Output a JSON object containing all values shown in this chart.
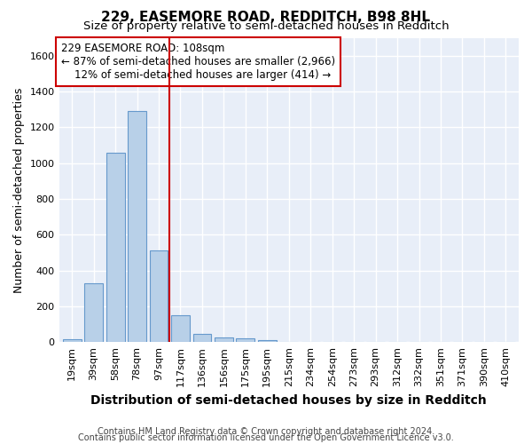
{
  "title": "229, EASEMORE ROAD, REDDITCH, B98 8HL",
  "subtitle": "Size of property relative to semi-detached houses in Redditch",
  "xlabel": "Distribution of semi-detached houses by size in Redditch",
  "ylabel": "Number of semi-detached properties",
  "footer1": "Contains HM Land Registry data © Crown copyright and database right 2024.",
  "footer2": "Contains public sector information licensed under the Open Government Licence v3.0.",
  "bar_labels": [
    "19sqm",
    "39sqm",
    "58sqm",
    "78sqm",
    "97sqm",
    "117sqm",
    "136sqm",
    "156sqm",
    "175sqm",
    "195sqm",
    "215sqm",
    "234sqm",
    "254sqm",
    "273sqm",
    "293sqm",
    "312sqm",
    "332sqm",
    "351sqm",
    "371sqm",
    "390sqm",
    "410sqm"
  ],
  "bar_values": [
    15,
    330,
    1060,
    1290,
    510,
    150,
    45,
    25,
    20,
    10,
    3,
    2,
    1,
    1,
    0,
    0,
    0,
    0,
    0,
    0,
    0
  ],
  "bar_color": "#b8d0e8",
  "bar_edge_color": "#6699cc",
  "vline_x": 5.0,
  "vline_color": "#cc0000",
  "annotation_line1": "229 EASEMORE ROAD: 108sqm",
  "annotation_line2": "← 87% of semi-detached houses are smaller (2,966)",
  "annotation_line3": "    12% of semi-detached houses are larger (414) →",
  "annotation_box_color": "#ffffff",
  "annotation_box_edge": "#cc0000",
  "ylim": [
    0,
    1700
  ],
  "yticks": [
    0,
    200,
    400,
    600,
    800,
    1000,
    1200,
    1400,
    1600
  ],
  "bg_color": "#ffffff",
  "plot_bg_color": "#e8eef8",
  "grid_color": "#ffffff",
  "title_fontsize": 11,
  "subtitle_fontsize": 9.5,
  "ylabel_fontsize": 9,
  "xlabel_fontsize": 10,
  "tick_fontsize": 8,
  "footer_fontsize": 7,
  "annotation_fontsize": 8.5
}
